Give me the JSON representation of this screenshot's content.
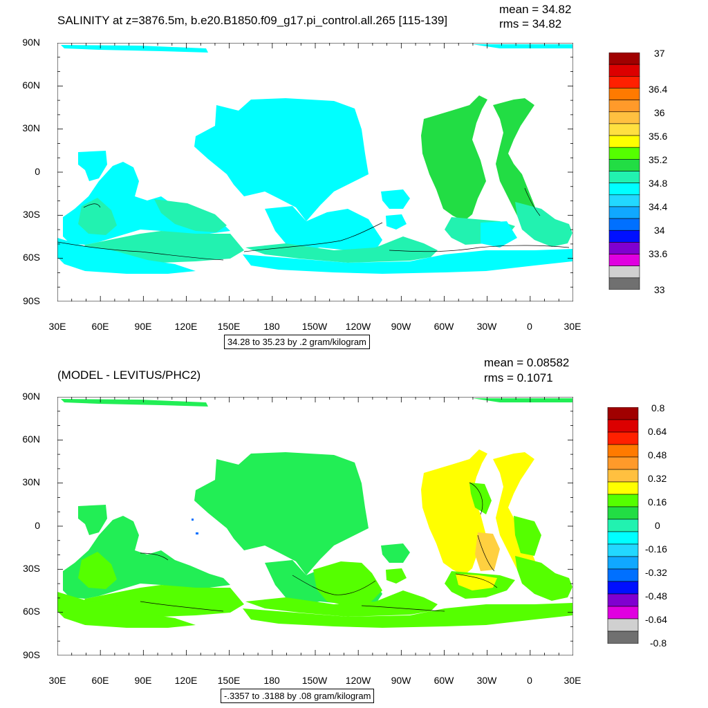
{
  "panels": [
    {
      "title": "SALINITY at z=3876.5m, b.e20.B1850.f09_g17.pi_control.all.265 [115-139]",
      "mean": "mean = 34.82",
      "rms": "rms = 34.82",
      "contour_info": "34.28 to 35.23 by .2 gram/kilogram",
      "lat_labels": [
        "90N",
        "60N",
        "30N",
        "0",
        "30S",
        "60S",
        "90S"
      ],
      "lon_labels": [
        "30E",
        "60E",
        "90E",
        "120E",
        "150E",
        "180",
        "150W",
        "120W",
        "90W",
        "60W",
        "30W",
        "0",
        "30E"
      ],
      "colorbar": {
        "labels": [
          "37",
          "36.4",
          "36",
          "35.6",
          "35.2",
          "34.8",
          "34.4",
          "34",
          "33.6",
          "33"
        ],
        "colors": [
          "#a00000",
          "#dc0000",
          "#ff2000",
          "#ff7a00",
          "#ff9a2a",
          "#ffc040",
          "#ffe040",
          "#ffff00",
          "#55ff00",
          "#22dd44",
          "#22f2b0",
          "#00ffff",
          "#22d8ff",
          "#10a8ff",
          "#0070ff",
          "#0010ff",
          "#8000d0",
          "#e000e0",
          "#d0d0d0",
          "#707070"
        ]
      },
      "map_colors": {
        "main": "#00ffff",
        "alt": "#22f2b0",
        "warm": "#22dd44"
      }
    },
    {
      "title": "(MODEL - LEVITUS/PHC2)",
      "mean": "mean = 0.08582",
      "rms": "rms = 0.1071",
      "contour_info": "-.3357 to .3188 by .08 gram/kilogram",
      "lat_labels": [
        "90N",
        "60N",
        "30N",
        "0",
        "30S",
        "60S",
        "90S"
      ],
      "lon_labels": [
        "30E",
        "60E",
        "90E",
        "120E",
        "150E",
        "180",
        "150W",
        "120W",
        "90W",
        "60W",
        "30W",
        "0",
        "30E"
      ],
      "colorbar": {
        "labels": [
          "0.8",
          "0.64",
          "0.48",
          "0.32",
          "0.16",
          "0",
          "-0.16",
          "-0.32",
          "-0.48",
          "-0.64",
          "-0.8"
        ],
        "colors": [
          "#a00000",
          "#dc0000",
          "#ff2000",
          "#ff7a00",
          "#ff9a2a",
          "#ffc040",
          "#ffff00",
          "#55ff00",
          "#22dd44",
          "#22f2b0",
          "#00ffff",
          "#22d8ff",
          "#10a8ff",
          "#0070ff",
          "#0010ff",
          "#8000d0",
          "#e000e0",
          "#d0d0d0",
          "#707070"
        ]
      },
      "map_colors": {
        "main": "#22ee55",
        "alt": "#55ff00",
        "warm": "#ffff00",
        "hot": "#ffd040"
      }
    }
  ]
}
